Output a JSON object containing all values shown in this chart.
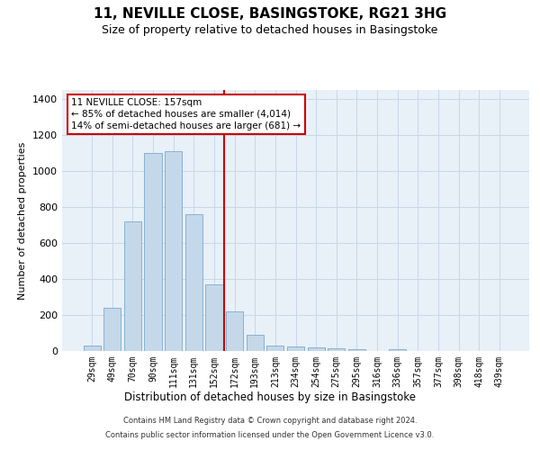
{
  "title": "11, NEVILLE CLOSE, BASINGSTOKE, RG21 3HG",
  "subtitle": "Size of property relative to detached houses in Basingstoke",
  "xlabel": "Distribution of detached houses by size in Basingstoke",
  "ylabel": "Number of detached properties",
  "bar_labels": [
    "29sqm",
    "49sqm",
    "70sqm",
    "90sqm",
    "111sqm",
    "131sqm",
    "152sqm",
    "172sqm",
    "193sqm",
    "213sqm",
    "234sqm",
    "254sqm",
    "275sqm",
    "295sqm",
    "316sqm",
    "336sqm",
    "357sqm",
    "377sqm",
    "398sqm",
    "418sqm",
    "439sqm"
  ],
  "bar_values": [
    30,
    240,
    720,
    1100,
    1110,
    760,
    370,
    220,
    90,
    30,
    25,
    20,
    15,
    10,
    0,
    10,
    0,
    0,
    0,
    0,
    0
  ],
  "bar_color": "#c5d8ea",
  "bar_edge_color": "#7aaaca",
  "vline_color": "#cc0000",
  "vline_index": 6.5,
  "ylim": [
    0,
    1450
  ],
  "yticks": [
    0,
    200,
    400,
    600,
    800,
    1000,
    1200,
    1400
  ],
  "annotation_text": "11 NEVILLE CLOSE: 157sqm\n← 85% of detached houses are smaller (4,014)\n14% of semi-detached houses are larger (681) →",
  "annotation_box_color": "#cc0000",
  "grid_color": "#c8d8e8",
  "background_color": "#e8f0f8",
  "footer_line1": "Contains HM Land Registry data © Crown copyright and database right 2024.",
  "footer_line2": "Contains public sector information licensed under the Open Government Licence v3.0."
}
